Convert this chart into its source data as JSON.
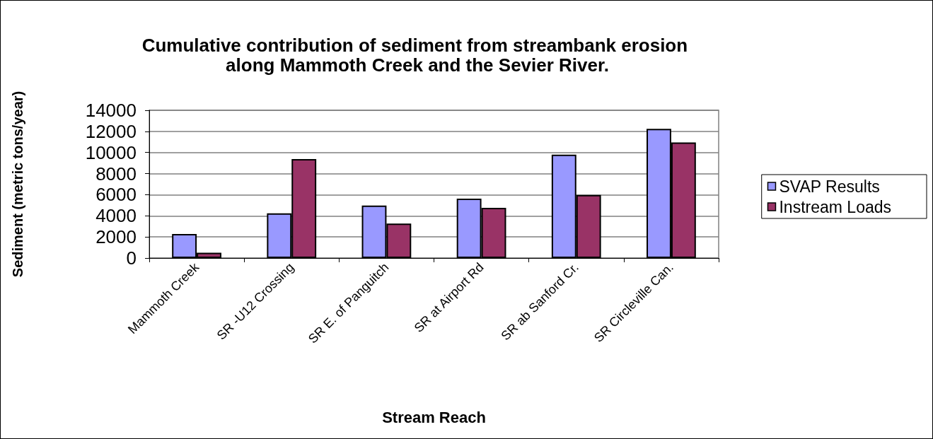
{
  "chart_data": {
    "type": "bar",
    "title": "Cumulative contribution of sediment from streambank erosion along Mammoth Creek and the Sevier River.",
    "xlabel": "Stream Reach",
    "ylabel": "Sediment (metric tons/year)",
    "categories": [
      "Mammoth Creek",
      "SR -U12 Crossing",
      "SR E. of Panguitch",
      "SR at Airport Rd",
      "SR ab Sanford Cr.",
      "SR Circleville Can."
    ],
    "series": [
      {
        "name": "SVAP Results",
        "color": "#9999ff",
        "values": [
          2270,
          4240,
          4980,
          5620,
          9800,
          12240
        ]
      },
      {
        "name": "Instream Loads",
        "color": "#993366",
        "values": [
          510,
          9380,
          3270,
          4760,
          5980,
          10960
        ]
      }
    ],
    "ylim": [
      0,
      14000
    ],
    "yticks": [
      0,
      2000,
      4000,
      6000,
      8000,
      10000,
      12000,
      14000
    ],
    "grid": "y",
    "legend": "right"
  }
}
